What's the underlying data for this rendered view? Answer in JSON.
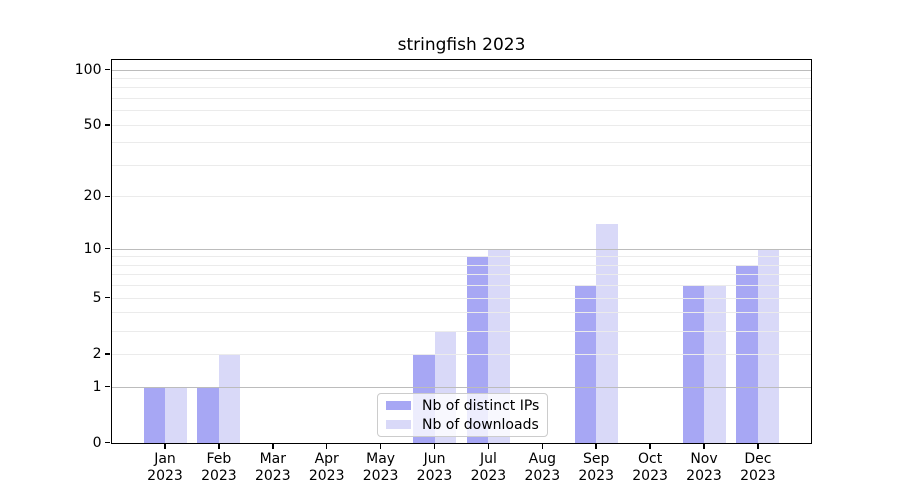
{
  "title": "stringfish 2023",
  "legend": {
    "items": [
      {
        "label": "Nb of distinct IPs",
        "color": "#a7a7f4"
      },
      {
        "label": "Nb of downloads",
        "color": "#d9d9f8"
      }
    ]
  },
  "chart_data": {
    "type": "bar",
    "title": "stringfish 2023",
    "categories": [
      "Jan 2023",
      "Feb 2023",
      "Mar 2023",
      "Apr 2023",
      "May 2023",
      "Jun 2023",
      "Jul 2023",
      "Aug 2023",
      "Sep 2023",
      "Oct 2023",
      "Nov 2023",
      "Dec 2023"
    ],
    "series": [
      {
        "name": "Nb of distinct IPs",
        "color": "#a7a7f4",
        "values": [
          1,
          1,
          0,
          0,
          0,
          2,
          9,
          0,
          6,
          0,
          6,
          8
        ]
      },
      {
        "name": "Nb of downloads",
        "color": "#d9d9f8",
        "values": [
          1,
          2,
          0,
          0,
          0,
          3,
          10,
          0,
          14,
          0,
          6,
          10
        ]
      }
    ],
    "yscale": "log1p",
    "ylim": [
      0,
      113
    ],
    "y_ticks": [
      {
        "v": 100,
        "label": "100"
      },
      {
        "v": 50,
        "label": "50"
      },
      {
        "v": 20,
        "label": "20"
      },
      {
        "v": 10,
        "label": "10"
      },
      {
        "v": 5,
        "label": "5"
      },
      {
        "v": 2,
        "label": "2"
      },
      {
        "v": 1,
        "label": "1"
      },
      {
        "v": 0,
        "label": "0"
      }
    ],
    "y_major_gridlines": [
      1,
      10,
      100
    ],
    "y_minor_gridlines": [
      2,
      3,
      4,
      5,
      6,
      7,
      8,
      9,
      20,
      30,
      40,
      50,
      60,
      70,
      80,
      90
    ],
    "grid": "both",
    "legend_position": "lower-center"
  }
}
